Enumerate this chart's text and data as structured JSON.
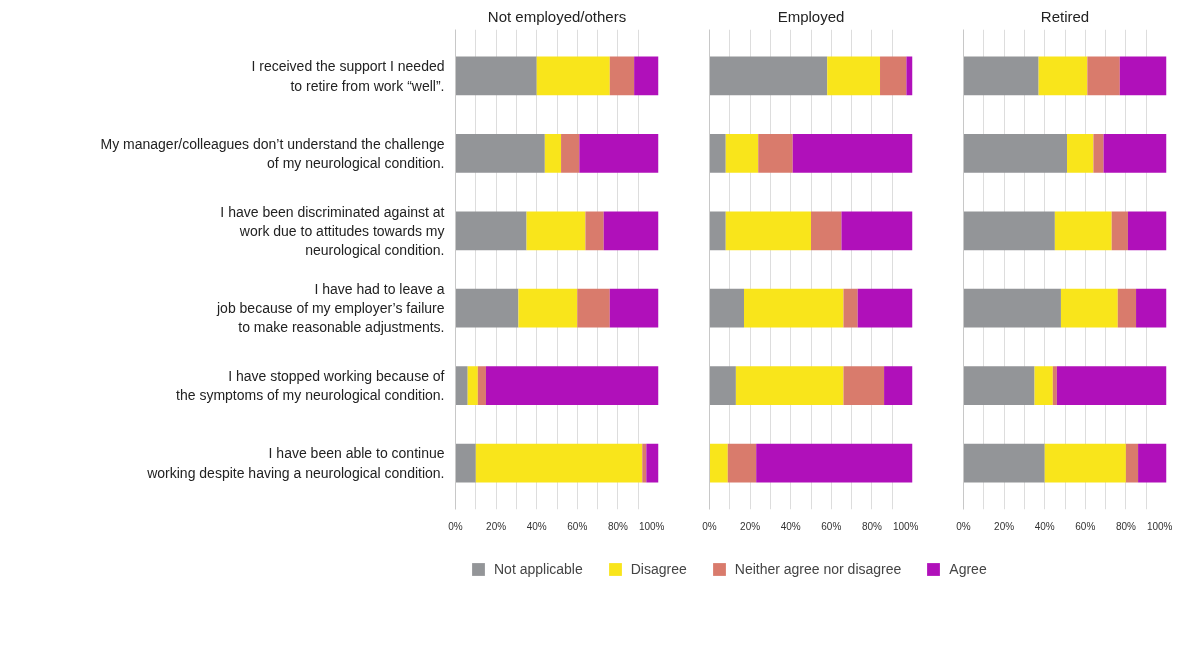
{
  "chart_data": [
    {
      "type": "bar",
      "orientation": "horizontal",
      "stacked": true,
      "title": "Not employed/others",
      "categories": [
        "I received the support I needed\nto retire from work “well”.",
        "My manager/colleagues don’t understand the challenge\nof my neurological condition.",
        "I have been discriminated against at\nwork due to attitudes towards my\nneurological condition.",
        "I have had to leave a\njob because of my employer’s failure\nto make reasonable adjustments.",
        "I have stopped working because of\nthe symptoms of my neurological condition.",
        "I have been able to continue\nworking despite having a neurological condition."
      ],
      "series": [
        {
          "color": "#939598",
          "values": [
            40,
            44,
            35,
            31,
            6,
            10
          ]
        },
        {
          "color": "#f9e51b",
          "values": [
            36,
            8,
            29,
            29,
            5,
            82
          ]
        },
        {
          "color": "#d97b6c",
          "values": [
            12,
            9,
            9,
            16,
            4,
            2
          ]
        },
        {
          "color": "#b010ba",
          "values": [
            12,
            39,
            27,
            24,
            85,
            6
          ]
        }
      ],
      "xlim": [
        0,
        100
      ],
      "xticks": [
        {
          "value": 0,
          "label": "0%"
        },
        {
          "value": 10,
          "label": null
        },
        {
          "value": 20,
          "label": "20%"
        },
        {
          "value": 30,
          "label": null
        },
        {
          "value": 40,
          "label": "40%"
        },
        {
          "value": 50,
          "label": null
        },
        {
          "value": 60,
          "label": "60%"
        },
        {
          "value": 70,
          "label": null
        },
        {
          "value": 80,
          "label": "80%"
        },
        {
          "value": 90,
          "label": null
        },
        {
          "value": 100,
          "label": "100%"
        }
      ],
      "grid": "x"
    },
    {
      "type": "bar",
      "orientation": "horizontal",
      "stacked": true,
      "title": "Employed",
      "categories": [
        null,
        null,
        null,
        null,
        null,
        null
      ],
      "series": [
        {
          "name": "Not applicable",
          "color": "#939598",
          "values": [
            58,
            8,
            8,
            17,
            13,
            0
          ]
        },
        {
          "name": "Disagree",
          "color": "#f9e51b",
          "values": [
            26,
            16,
            42,
            49,
            53,
            9
          ]
        },
        {
          "name": "Neither agree nor disagree",
          "color": "#d97b6c",
          "values": [
            13,
            17,
            15,
            7,
            20,
            14
          ]
        },
        {
          "name": "Agree",
          "color": "#b010ba",
          "values": [
            3,
            59,
            35,
            27,
            14,
            77
          ]
        }
      ],
      "xlim": [
        0,
        100
      ],
      "xticks": [
        {
          "value": 0,
          "label": "0%"
        },
        {
          "value": 10,
          "label": null
        },
        {
          "value": 20,
          "label": "20%"
        },
        {
          "value": 30,
          "label": null
        },
        {
          "value": 40,
          "label": "40%"
        },
        {
          "value": 50,
          "label": null
        },
        {
          "value": 60,
          "label": "60%"
        },
        {
          "value": 70,
          "label": null
        },
        {
          "value": 80,
          "label": "80%"
        },
        {
          "value": 90,
          "label": null
        },
        {
          "value": 100,
          "label": "100%"
        }
      ],
      "grid": "x",
      "tick_labels": "x",
      "legend": "bottom"
    },
    {
      "type": "bar",
      "orientation": "horizontal",
      "stacked": true,
      "title": "Retired",
      "categories": [
        null,
        null,
        null,
        null,
        null,
        null
      ],
      "series": [
        {
          "color": "#939598",
          "values": [
            37,
            51,
            45,
            48,
            35,
            40
          ]
        },
        {
          "color": "#f9e51b",
          "values": [
            24,
            13,
            28,
            28,
            9,
            40
          ]
        },
        {
          "color": "#d97b6c",
          "values": [
            16,
            5,
            8,
            9,
            2,
            6
          ]
        },
        {
          "color": "#b010ba",
          "values": [
            23,
            31,
            19,
            15,
            54,
            14
          ]
        }
      ],
      "xlim": [
        0,
        100
      ],
      "xticks": [
        {
          "value": 0,
          "label": "0%"
        },
        {
          "value": 10,
          "label": null
        },
        {
          "value": 20,
          "label": "20%"
        },
        {
          "value": 30,
          "label": null
        },
        {
          "value": 40,
          "label": "40%"
        },
        {
          "value": 50,
          "label": null
        },
        {
          "value": 60,
          "label": "60%"
        },
        {
          "value": 70,
          "label": null
        },
        {
          "value": 80,
          "label": "80%"
        },
        {
          "value": 90,
          "label": null
        },
        {
          "value": 100,
          "label": "100%"
        }
      ],
      "grid": "x",
      "tick_labels": "x"
    }
  ]
}
